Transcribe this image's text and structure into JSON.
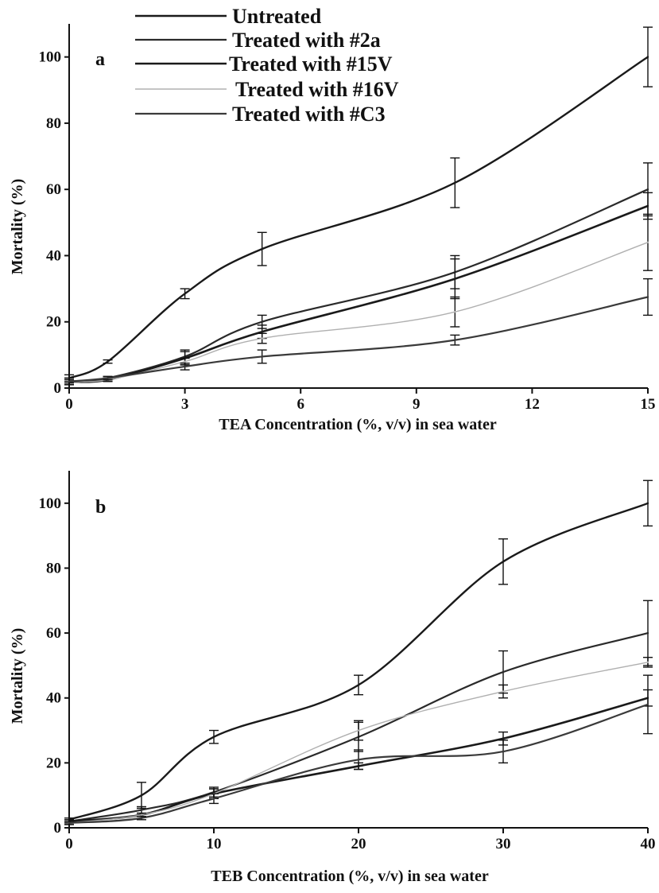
{
  "legend": [
    {
      "label": "Untreated",
      "color": "#1a1a1a"
    },
    {
      "label": "Treated with #2a",
      "color": "#2a2a2a"
    },
    {
      "label": "Treated with #15V",
      "color": "#1a1a1a"
    },
    {
      "label": "Treated with #16V",
      "color": "#b0b0b0"
    },
    {
      "label": "Treated with #C3",
      "color": "#3a3a3a"
    }
  ],
  "chart_data": [
    {
      "type": "line",
      "panel_label": "a",
      "xlabel": "TEA Concentration (%, v/v) in sea water",
      "ylabel": "Mortality (%)",
      "xlim": [
        0,
        15
      ],
      "ylim": [
        0,
        110
      ],
      "xticks": [
        0,
        3,
        6,
        9,
        12,
        15
      ],
      "yticks": [
        0,
        20,
        40,
        60,
        80,
        100
      ],
      "legend_position": "top",
      "series": [
        {
          "name": "Untreated",
          "x": [
            0,
            1,
            3,
            5,
            10,
            15
          ],
          "y": [
            3,
            8,
            28.5,
            42,
            62,
            100
          ],
          "err": [
            1,
            0.5,
            1.5,
            5,
            7.5,
            9
          ]
        },
        {
          "name": "Treated with #2a",
          "x": [
            0,
            1,
            3,
            5,
            10,
            15
          ],
          "y": [
            2,
            3,
            9.5,
            20,
            35,
            60
          ],
          "err": [
            1,
            0.5,
            2,
            2,
            5,
            8
          ]
        },
        {
          "name": "Treated with #15V",
          "x": [
            0,
            1,
            3,
            5,
            10,
            15
          ],
          "y": [
            2,
            2.5,
            9,
            17,
            33,
            55
          ],
          "err": [
            1,
            0.5,
            2,
            2,
            6,
            4
          ]
        },
        {
          "name": "Treated with #16V",
          "x": [
            0,
            1,
            3,
            5,
            10,
            15
          ],
          "y": [
            2,
            2.5,
            8,
            15,
            23,
            44
          ],
          "err": [
            0.5,
            0.5,
            1,
            1.5,
            4.5,
            8.5
          ]
        },
        {
          "name": "Treated with #C3",
          "x": [
            0,
            1,
            3,
            5,
            10,
            15
          ],
          "y": [
            2,
            3,
            6.5,
            9.5,
            14.5,
            27.5
          ],
          "err": [
            1,
            0.5,
            1,
            2,
            1.5,
            5.5
          ]
        }
      ]
    },
    {
      "type": "line",
      "panel_label": "b",
      "xlabel": "TEB Concentration (%, v/v) in sea water",
      "ylabel": "Mortality (%)",
      "xlim": [
        0,
        40
      ],
      "ylim": [
        0,
        110
      ],
      "xticks": [
        0,
        10,
        20,
        30,
        40
      ],
      "yticks": [
        0,
        20,
        40,
        60,
        80,
        100
      ],
      "series": [
        {
          "name": "Untreated",
          "x": [
            0,
            5,
            10,
            20,
            30,
            40
          ],
          "y": [
            2.5,
            10,
            28,
            44,
            82,
            100
          ],
          "err": [
            0.5,
            4,
            2,
            3,
            7,
            7
          ]
        },
        {
          "name": "Treated with #2a",
          "x": [
            0,
            5,
            10,
            20,
            30,
            40
          ],
          "y": [
            2,
            5.5,
            11,
            28,
            48,
            60
          ],
          "err": [
            0.5,
            1,
            1.5,
            4.5,
            6.5,
            10
          ]
        },
        {
          "name": "Treated with #15V",
          "x": [
            0,
            5,
            10,
            20,
            30,
            40
          ],
          "y": [
            2,
            4,
            10.5,
            19,
            27.5,
            40
          ],
          "err": [
            0.5,
            0.5,
            1.5,
            1,
            2,
            2.5
          ]
        },
        {
          "name": "Treated with #16V",
          "x": [
            0,
            5,
            10,
            20,
            30,
            40
          ],
          "y": [
            1.5,
            4,
            10.5,
            30,
            42,
            51
          ],
          "err": [
            0.5,
            0.5,
            1.5,
            3,
            2,
            1.5
          ]
        },
        {
          "name": "Treated with #C3",
          "x": [
            0,
            5,
            10,
            20,
            30,
            40
          ],
          "y": [
            1.5,
            3,
            9,
            21,
            23.5,
            38
          ],
          "err": [
            0.5,
            0.5,
            1.5,
            3,
            3.5,
            9
          ]
        }
      ]
    }
  ]
}
